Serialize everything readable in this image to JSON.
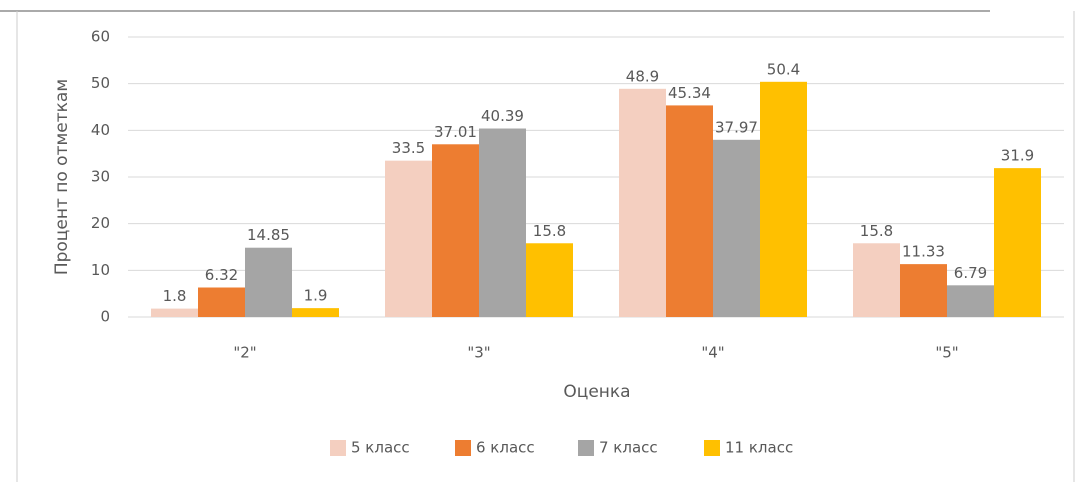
{
  "chart_data": {
    "type": "bar",
    "x_label": "Оценка",
    "y_label": "Процент по отметкам",
    "categories": [
      "\"2\"",
      "\"3\"",
      "\"4\"",
      "\"5\""
    ],
    "series": [
      {
        "name": "5 класс",
        "color": "#f4cfc0",
        "values": [
          1.8,
          33.5,
          48.9,
          15.8
        ]
      },
      {
        "name": "6 класс",
        "color": "#ed7d31",
        "values": [
          6.32,
          37.01,
          45.34,
          11.33
        ]
      },
      {
        "name": "7 класс",
        "color": "#a5a5a5",
        "values": [
          14.85,
          40.39,
          37.97,
          6.79
        ]
      },
      {
        "name": "11 класс",
        "color": "#ffc000",
        "values": [
          1.9,
          15.8,
          50.4,
          31.9
        ]
      }
    ],
    "ylim": [
      0,
      60
    ],
    "yticks": [
      0,
      10,
      20,
      30,
      40,
      50,
      60
    ],
    "grid": true,
    "legend": "bottom"
  }
}
